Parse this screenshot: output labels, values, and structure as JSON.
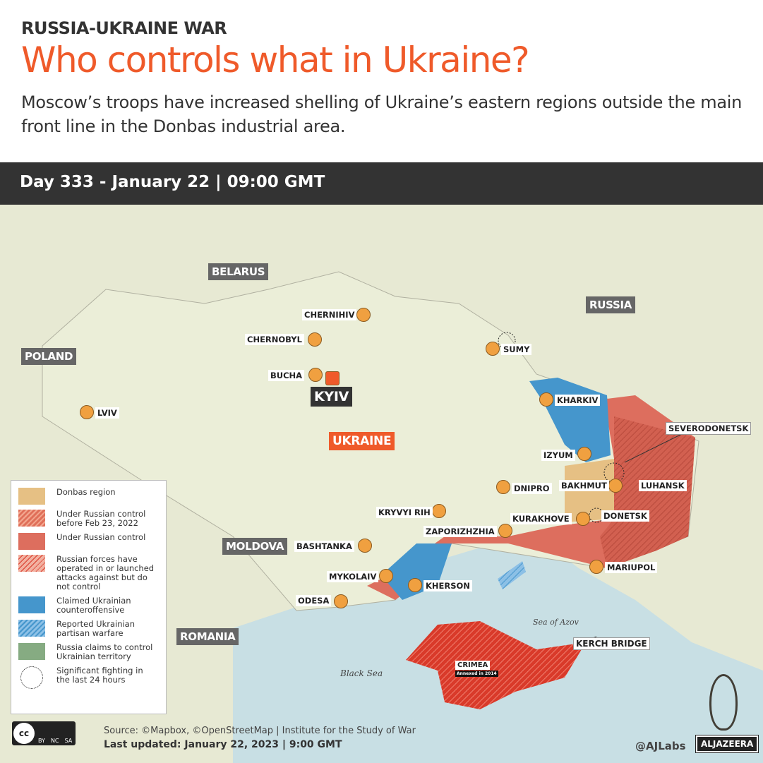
{
  "header": {
    "kicker": "RUSSIA-UKRAINE WAR",
    "title": "Who controls what in Ukraine?",
    "subtitle": "Moscow’s troops have increased shelling of Ukraine’s eastern regions outside the main front line in the Donbas industrial area."
  },
  "daybar": {
    "text": "Day 333 - January 22  |  09:00 GMT"
  },
  "countries": {
    "belarus": "BELARUS",
    "russia": "RUSSIA",
    "poland": "POLAND",
    "moldova": "MOLDOVA",
    "romania": "ROMANIA",
    "ukraine": "UKRAINE",
    "kyiv": "KYIV"
  },
  "cities": {
    "chernihiv": "CHERNIHIV",
    "chernobyl": "CHERNOBYL",
    "bucha": "BUCHA",
    "lviv": "LVIV",
    "sumy": "SUMY",
    "kharkiv": "KHARKIV",
    "izyum": "IZYUM",
    "severodonetsk": "SEVERODONETSK",
    "bakhmut": "BAKHMUT",
    "luhansk": "LUHANSK",
    "dnipro": "DNIPRO",
    "kryvyi_rih": "KRYVYI RIH",
    "kurakhove": "KURAKHOVE",
    "donetsk": "DONETSK",
    "zaporizhzhia": "ZAPORIZHZHIA",
    "bashtanka": "BASHTANKA",
    "mykolaiv": "MYKOLAIV",
    "kherson": "KHERSON",
    "odesa": "ODESA",
    "mariupol": "MARIUPOL",
    "kerch_bridge": "KERCH BRIDGE",
    "crimea": "CRIMEA",
    "crimea_note": "Annexed in 2014"
  },
  "seas": {
    "black_sea": "Black Sea",
    "azov": "Sea of Azov"
  },
  "legend": [
    {
      "label": "Donbas region",
      "color": "#e6c084"
    },
    {
      "label": "Under Russian control before Feb 23, 2022",
      "color": "#e0705a",
      "pattern": "hatched"
    },
    {
      "label": "Under Russian control",
      "color": "#dd6e5e"
    },
    {
      "label": "Russian forces have operated in or launched attacks against but do not control",
      "color": "#f2b0a0",
      "pattern": "hatched-red"
    },
    {
      "label": "Claimed Ukrainian counteroffensive",
      "color": "#4596cc"
    },
    {
      "label": "Reported Ukrainian partisan warfare",
      "color": "#8cc0e6",
      "pattern": "hatched-blue"
    },
    {
      "label": "Russia claims to control Ukrainian territory",
      "color": "#86ab82"
    },
    {
      "label": "Significant fighting in the last 24 hours",
      "pattern": "dotted-circle"
    }
  ],
  "footer": {
    "source": "Source: ©Mapbox, ©OpenStreetMap  |  Institute for the Study of War",
    "updated": "Last updated: January 22, 2023  |  9:00 GMT",
    "handle": "@AJLabs",
    "brand": "ALJAZEERA",
    "license": [
      "BY",
      "NC",
      "SA"
    ]
  },
  "colors": {
    "accent": "#ef5a2a",
    "russian_control": "#dd6e5e",
    "crimea": "#d93a2a",
    "ukraine_counter": "#4596cc",
    "donbas": "#e6c084",
    "sea": "#c8dfe4",
    "land": "#e7e9d3"
  }
}
